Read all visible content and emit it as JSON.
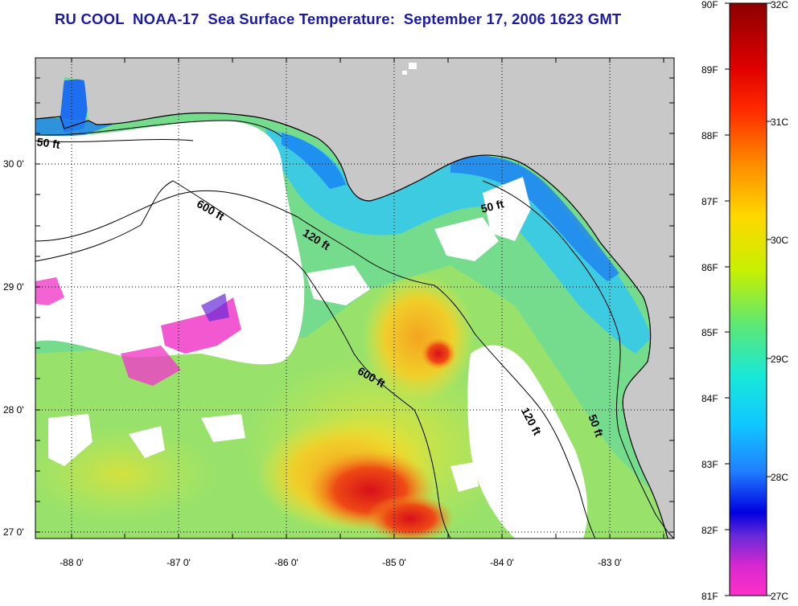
{
  "title": "RU COOL  NOAA-17  Sea Surface Temperature:  September 17, 2006 1623 GMT",
  "lat_labels": [
    "30 0'",
    "29 0'",
    "28 0'",
    "27 0'"
  ],
  "lon_labels": [
    "-88 0'",
    "-87 0'",
    "-86 0'",
    "-85 0'",
    "-84 0'",
    "-83 0'"
  ],
  "depth_contour_labels": [
    "50 ft",
    "600 ft",
    "120 ft",
    "50 ft",
    "600 ft",
    "120 ft",
    "50 ft"
  ],
  "colorbar": {
    "f_labels": [
      "90F",
      "89F",
      "88F",
      "87F",
      "86F",
      "85F",
      "84F",
      "83F",
      "82F",
      "81F"
    ],
    "c_labels": [
      "32C",
      "31C",
      "30C",
      "29C",
      "28C",
      "27C"
    ]
  },
  "colors": {
    "title": "#1a1aa6",
    "land": "#c8c8c8",
    "cloud": "#ffffff",
    "warm": "#e0201a",
    "cool": "#1a6bf0"
  }
}
